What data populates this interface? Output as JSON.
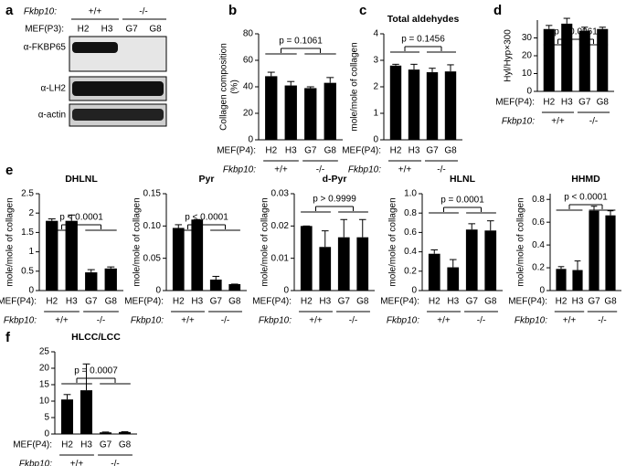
{
  "blot": {
    "panel": "a",
    "genotype_label": "Fkbp10:",
    "groups": [
      "+/+",
      "-/-"
    ],
    "lane_label": "MEF(P3):",
    "lanes": [
      "H2",
      "H3",
      "G7",
      "G8"
    ],
    "antibodies": [
      "α-FKBP65",
      "α-LH2",
      "α-actin"
    ]
  },
  "chart_data": [
    {
      "type": "bar",
      "panel": "b",
      "ylabel": [
        "Collagen composition",
        "(%)"
      ],
      "categories": [
        "H2",
        "H3",
        "G7",
        "G8"
      ],
      "values": [
        48,
        41,
        39,
        43
      ],
      "errors": [
        3,
        3,
        1,
        4
      ],
      "color": "#000000",
      "ylim": [
        0,
        80
      ],
      "yticks": [
        0,
        20,
        40,
        60,
        80
      ],
      "annotation": "p = 0.1061",
      "x_label": "MEF(P4):",
      "group_label": "Fkbp10:",
      "groups": [
        "+/+",
        "-/-"
      ]
    },
    {
      "type": "bar",
      "panel": "c",
      "title": "Total aldehydes",
      "ylabel": "mole/mole of collagen",
      "categories": [
        "H2",
        "H3",
        "G7",
        "G8"
      ],
      "values": [
        2.8,
        2.65,
        2.55,
        2.58
      ],
      "errors": [
        0.05,
        0.2,
        0.15,
        0.25
      ],
      "color": "#000000",
      "ylim": [
        0,
        4
      ],
      "yticks": [
        0,
        1,
        2,
        3,
        4
      ],
      "annotation": "p = 0.1456",
      "x_label": "MEF(P4):",
      "group_label": "Fkbp10:",
      "groups": [
        "+/+",
        "-/-"
      ]
    },
    {
      "type": "bar",
      "panel": "d",
      "ylabel": "Hyl/Hyp×300",
      "categories": [
        "H2",
        "H3",
        "G7",
        "G8"
      ],
      "values": [
        35,
        38,
        34,
        35
      ],
      "errors": [
        2,
        3,
        2,
        1
      ],
      "color": "#000000",
      "ylim": [
        0,
        40
      ],
      "yticks": [
        0,
        10,
        20,
        30
      ],
      "annotation": "p = 0.0961",
      "x_label": "MEF(P4):",
      "group_label": "Fkbp10:",
      "groups": [
        "+/+",
        "-/-"
      ]
    },
    {
      "type": "bar",
      "panel": "e",
      "title": "DHLNL",
      "ylabel": "mole/mole of collagen",
      "categories": [
        "H2",
        "H3",
        "G7",
        "G8"
      ],
      "values": [
        1.8,
        1.8,
        0.47,
        0.57
      ],
      "errors": [
        0.05,
        0.15,
        0.07,
        0.04
      ],
      "color": "#000000",
      "ylim": [
        0,
        2.5
      ],
      "yticks": [
        0,
        0.5,
        1,
        1.5,
        2,
        2.5
      ],
      "annotation": "p < 0.0001",
      "x_label": "MEF(P4):",
      "group_label": "Fkbp10:",
      "groups": [
        "+/+",
        "-/-"
      ]
    },
    {
      "type": "bar",
      "title": "Pyr",
      "ylabel": "mole/mole of collagen",
      "categories": [
        "H2",
        "H3",
        "G7",
        "G8"
      ],
      "values": [
        0.097,
        0.11,
        0.017,
        0.01
      ],
      "errors": [
        0.005,
        0,
        0.005,
        0
      ],
      "color": "#000000",
      "ylim": [
        0,
        0.15
      ],
      "yticks": [
        0,
        0.05,
        {
          "value": 0.1,
          "label": "0.10"
        },
        0.15
      ],
      "annotation": "p < 0.0001",
      "x_label": "MEF(P4):",
      "group_label": "Fkbp10:",
      "groups": [
        "+/+",
        "-/-"
      ]
    },
    {
      "type": "bar",
      "title": "d-Pyr",
      "ylabel": "mole/mole of collagen",
      "categories": [
        "H2",
        "H3",
        "G7",
        "G8"
      ],
      "values": [
        0.02,
        0.0135,
        0.0165,
        0.0165
      ],
      "errors": [
        0,
        0.005,
        0.0055,
        0.0055
      ],
      "color": "#000000",
      "ylim": [
        0,
        0.03
      ],
      "yticks": [
        0,
        0.01,
        0.02,
        0.03
      ],
      "annotation": "p > 0.9999",
      "x_label": "MEF(P4):",
      "group_label": "Fkbp10:",
      "groups": [
        "+/+",
        "-/-"
      ]
    },
    {
      "type": "bar",
      "title": "HLNL",
      "ylabel": "mole/mole of collagen",
      "categories": [
        "H2",
        "H3",
        "G7",
        "G8"
      ],
      "values": [
        0.38,
        0.24,
        0.63,
        0.62
      ],
      "errors": [
        0.04,
        0.08,
        0.06,
        0.1
      ],
      "color": "#000000",
      "ylim": [
        0,
        1.0
      ],
      "yticks": [
        0,
        0.2,
        0.4,
        0.6,
        0.8,
        {
          "value": 1,
          "label": "1.0"
        }
      ],
      "annotation": "p = 0.0001",
      "x_label": "MEF(P4):",
      "group_label": "Fkbp10:",
      "groups": [
        "+/+",
        "-/-"
      ]
    },
    {
      "type": "bar",
      "title": "HHMD",
      "ylabel": "mole/mole of collagen",
      "categories": [
        "H2",
        "H3",
        "G7",
        "G8"
      ],
      "values": [
        0.19,
        0.18,
        0.7,
        0.66
      ],
      "errors": [
        0.02,
        0.08,
        0.04,
        0.04
      ],
      "color": "#000000",
      "ylim": [
        0,
        0.85
      ],
      "yticks": [
        0,
        0.2,
        0.4,
        0.6,
        0.8
      ],
      "annotation": "p < 0.0001",
      "x_label": "MEF(P4):",
      "group_label": "Fkbp10:",
      "groups": [
        "+/+",
        "-/-"
      ]
    },
    {
      "type": "bar",
      "panel": "f",
      "title": "HLCC/LCC",
      "categories": [
        "H2",
        "H3",
        "G7",
        "G8"
      ],
      "values": [
        10.5,
        13.3,
        0.5,
        0.6
      ],
      "errors": [
        1.5,
        8,
        0.1,
        0.1
      ],
      "color": "#000000",
      "ylim": [
        0,
        25
      ],
      "yticks": [
        0,
        5,
        10,
        15,
        20,
        25
      ],
      "annotation": "p = 0.0007",
      "x_label": "MEF(P4):",
      "group_label": "Fkbp10:",
      "groups": [
        "+/+",
        "-/-"
      ]
    }
  ]
}
